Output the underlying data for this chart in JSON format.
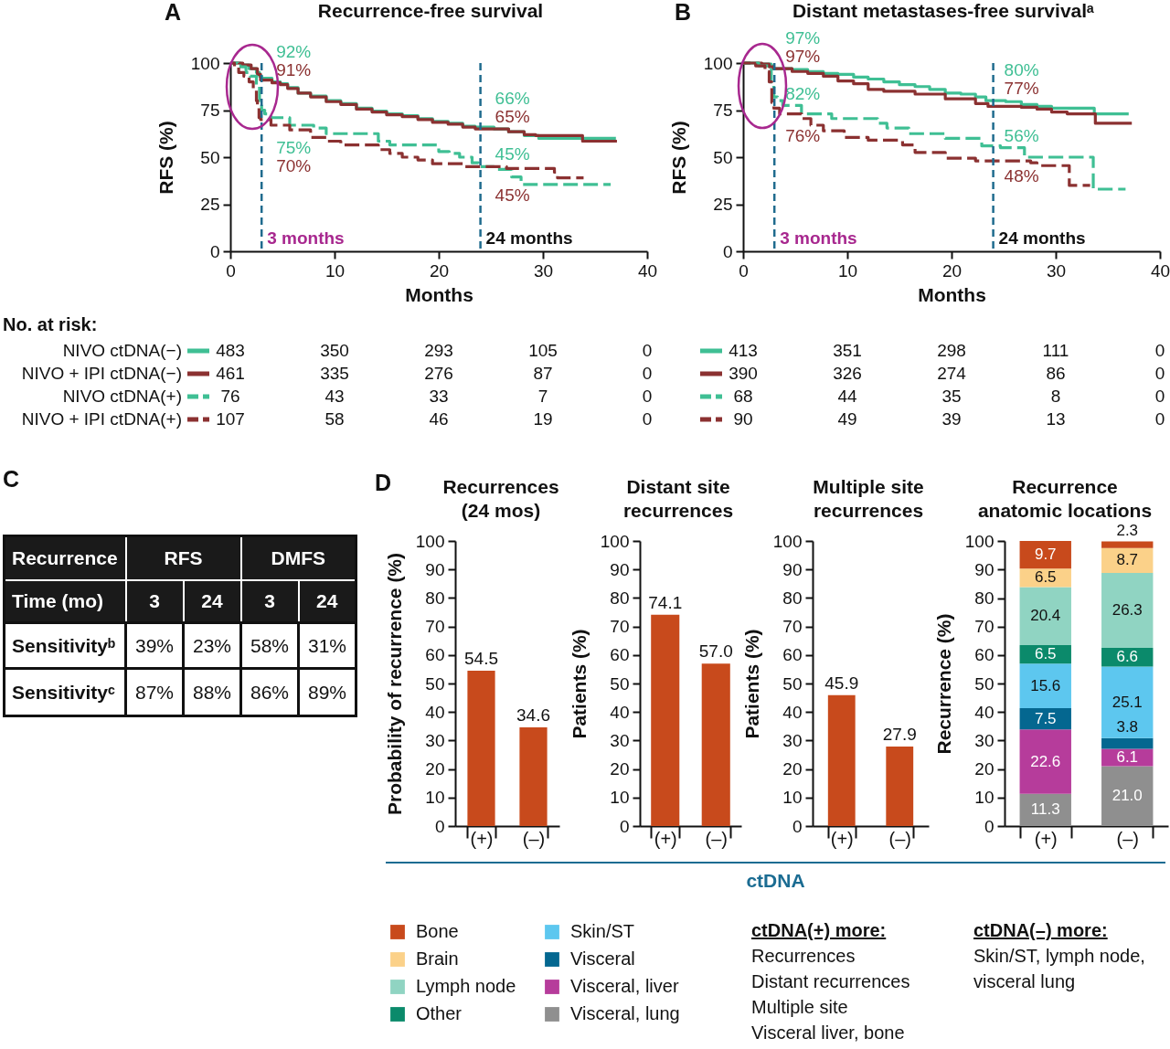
{
  "chart_data": [
    {
      "type": "step",
      "title": "Recurrence-free survival",
      "xlabel": "Months",
      "ylabel": "RFS (%)",
      "xlim": [
        0,
        40
      ],
      "ylim": [
        0,
        100
      ],
      "xticks": [
        0,
        10,
        20,
        30,
        40
      ],
      "yticks": [
        0,
        25,
        50,
        75,
        100
      ],
      "legend": "bottom",
      "series": [
        {
          "name": "NIVO ctDNA(−)",
          "color": "#3fbf94",
          "x": [
            0,
            1,
            1.8,
            2.5,
            2.8,
            3,
            4,
            4.8,
            5.5,
            6.5,
            7.7,
            9.2,
            10.6,
            12.1,
            13.6,
            15,
            16.5,
            18,
            19.4,
            20.9,
            22.3,
            23.5,
            25.3,
            26.7,
            28.2,
            29.6,
            37
          ],
          "values": [
            100,
            99,
            97,
            95,
            93,
            92,
            90,
            89,
            87,
            84,
            82.5,
            80,
            78.5,
            76,
            74.5,
            73,
            72,
            70.5,
            69,
            68,
            66.5,
            66,
            65,
            63.5,
            61.5,
            60,
            60
          ]
        },
        {
          "name": "NIVO + IPI ctDNA(−)",
          "color": "#8b3131",
          "x": [
            0,
            1.2,
            2,
            2.6,
            2.9,
            4,
            4.8,
            5.5,
            6.5,
            7.7,
            9.2,
            10.6,
            12.1,
            13.6,
            15,
            16.5,
            18,
            19.4,
            20.9,
            22.3,
            23.5,
            26.7,
            28.2,
            29.3,
            33.8,
            37.1
          ],
          "values": [
            100,
            99,
            97,
            94,
            91,
            89.5,
            88.5,
            86.5,
            84,
            82,
            79.5,
            78,
            75.5,
            74,
            72.5,
            71.5,
            70,
            68.5,
            67.5,
            66,
            65,
            63.5,
            62,
            61.5,
            58.5,
            58.5
          ]
        },
        {
          "name": "NIVO ctDNA(+)",
          "color": "#3fbf94",
          "line_style": "dashed",
          "x": [
            0,
            0.7,
            1.5,
            1.9,
            2.5,
            2.8,
            3,
            3.3,
            3.9,
            5.7,
            8,
            9.2,
            14.2,
            15.3,
            20,
            21,
            22,
            23.2,
            23.8,
            25.3,
            27,
            27.9,
            36.5
          ],
          "values": [
            100,
            98,
            95,
            93,
            88,
            80,
            75,
            73,
            71,
            67,
            65.5,
            62.5,
            58.5,
            56.5,
            53,
            52,
            50,
            47,
            45,
            43.5,
            39.5,
            35.5,
            35.5
          ]
        },
        {
          "name": "NIVO + IPI ctDNA(+)",
          "color": "#8b3131",
          "line_style": "dashed",
          "x": [
            0,
            0.4,
            0.8,
            1.3,
            1.8,
            2.2,
            2.5,
            2.6,
            2.75,
            2.9,
            3.9,
            5.7,
            7.7,
            9.2,
            10.6,
            14.2,
            15.3,
            16.5,
            18,
            19.4,
            22.5,
            26.5,
            31.1,
            31.4,
            33.9
          ],
          "values": [
            100,
            98,
            95,
            93,
            90,
            86.5,
            80,
            77,
            71,
            70,
            67,
            64.5,
            60.5,
            58.5,
            56.5,
            54,
            52,
            50,
            48.5,
            46.5,
            45,
            44,
            42,
            39,
            39
          ]
        }
      ],
      "ref_lines": [
        {
          "axis": "x",
          "value": 3,
          "label": "3 months",
          "color": "#1f6b8e",
          "line_style": "dashed"
        },
        {
          "axis": "x",
          "value": 24,
          "label": "24 months",
          "color": "#1f6b8e",
          "line_style": "dashed"
        }
      ],
      "annotations": [
        "A",
        "No. at risk:",
        "483",
        "350",
        "293",
        "105",
        "0",
        "461",
        "335",
        "276",
        "87",
        "0",
        "76",
        "43",
        "33",
        "7",
        "0",
        "107",
        "58",
        "46",
        "19",
        "0",
        "92%",
        "91%",
        "75%",
        "70%",
        "66%",
        "65%",
        "45%",
        "45%"
      ]
    },
    {
      "type": "step",
      "title": "Distant metastases-free survivalᵃ",
      "xlabel": "Months",
      "ylabel": "RFS (%)",
      "xlim": [
        0,
        40
      ],
      "ylim": [
        0,
        100
      ],
      "xticks": [
        0,
        10,
        20,
        30,
        40
      ],
      "yticks": [
        0,
        25,
        50,
        75,
        100
      ],
      "legend": "bottom",
      "series": [
        {
          "color": "#3fbf94",
          "x": [
            0,
            1.5,
            2.7,
            2.9,
            4.7,
            6.2,
            7.7,
            9.1,
            10.6,
            12,
            13.5,
            15,
            16.5,
            17.9,
            19.4,
            20.9,
            22.3,
            23.3,
            25.2,
            26.7,
            28.2,
            29.6,
            33.7,
            37
          ],
          "values": [
            100,
            99.5,
            98.5,
            97,
            96.5,
            95.5,
            94.5,
            94,
            92.5,
            91.5,
            90,
            88.5,
            87.5,
            86,
            84,
            83.5,
            82,
            80,
            79.5,
            78,
            77,
            76,
            73,
            73
          ]
        },
        {
          "color": "#8b3131",
          "x": [
            0,
            1.8,
            2.5,
            2.9,
            4.7,
            6.2,
            7.7,
            9.1,
            10.6,
            12,
            13.5,
            16.5,
            19.4,
            22.3,
            23.5,
            26.7,
            28.2,
            29.6,
            31.1,
            33.8,
            37.3
          ],
          "values": [
            100,
            99.5,
            98,
            97,
            95.5,
            94.5,
            93,
            90.5,
            89,
            86,
            85,
            83.5,
            81,
            78.5,
            77,
            76.5,
            75.5,
            74,
            73,
            68,
            68
          ]
        },
        {
          "color": "#3fbf94",
          "line_style": "dashed",
          "x": [
            0,
            1.5,
            2.4,
            2.7,
            2.95,
            3.3,
            3.8,
            5.6,
            8.5,
            12.9,
            13.8,
            15.9,
            19.4,
            22.9,
            24.7,
            27,
            33.6,
            36.7
          ],
          "values": [
            100,
            98.5,
            96.5,
            90,
            82,
            80,
            77.5,
            73,
            70.5,
            68,
            65.5,
            62.5,
            60,
            56,
            55,
            50,
            33,
            33
          ]
        },
        {
          "color": "#8b3131",
          "line_style": "dashed",
          "x": [
            0,
            1.2,
            2.1,
            2.5,
            2.75,
            2.95,
            3.5,
            5.6,
            6.5,
            7.7,
            9.7,
            12,
            15.3,
            16.5,
            19.4,
            22.3,
            27.6,
            28.2,
            31.3,
            33.3
          ],
          "values": [
            100,
            98.5,
            95.5,
            90,
            79,
            76,
            73,
            70.5,
            67,
            64,
            60.5,
            59,
            56.5,
            52.5,
            49.5,
            48,
            47,
            45.5,
            35,
            35
          ]
        }
      ],
      "ref_lines": [
        {
          "axis": "x",
          "value": 3,
          "label": "3 months",
          "color": "#1f6b8e",
          "line_style": "dashed"
        },
        {
          "axis": "x",
          "value": 24,
          "label": "24 months",
          "color": "#1f6b8e",
          "line_style": "dashed"
        }
      ],
      "annotations": [
        "B",
        "413",
        "351",
        "298",
        "111",
        "0",
        "390",
        "326",
        "274",
        "86",
        "0",
        "68",
        "44",
        "35",
        "8",
        "0",
        "90",
        "49",
        "39",
        "13",
        "0",
        "97%",
        "97%",
        "82%",
        "76%",
        "80%",
        "77%",
        "56%",
        "48%"
      ]
    },
    {
      "type": "other",
      "annotations": [
        "C",
        "Recurrence",
        "RFS",
        "DMFS",
        "Time (mo)",
        "3",
        "24",
        "3",
        "24",
        "Sensitivityᵇ",
        "39%",
        "23%",
        "58%",
        "31%",
        "Sensitivityᶜ",
        "87%",
        "88%",
        "86%",
        "89%"
      ]
    },
    {
      "type": "bar",
      "title": "Recurrences (24 mos)",
      "ylabel": "Probability of recurrence (%)",
      "categories": [
        "(+)",
        "(–)"
      ],
      "values": [
        54.5,
        34.6
      ],
      "color": "#c84a1c",
      "ylim": [
        0,
        100
      ],
      "yticks": [
        0,
        10,
        20,
        30,
        40,
        50,
        60,
        70,
        80,
        90,
        100
      ],
      "data_labels": true,
      "annotations": [
        "D"
      ]
    },
    {
      "type": "bar",
      "title": "Distant site recurrences",
      "ylabel": "Patients (%)",
      "categories": [
        "(+)",
        "(–)"
      ],
      "values": [
        74.1,
        57.0
      ],
      "value_labels": [
        "74.1",
        "57.0"
      ],
      "color": "#c84a1c",
      "ylim": [
        0,
        100
      ],
      "yticks": [
        0,
        10,
        20,
        30,
        40,
        50,
        60,
        70,
        80,
        90,
        100
      ]
    },
    {
      "type": "bar",
      "title": "Multiple site recurrences",
      "ylabel": "Patients (%)",
      "categories": [
        "(+)",
        "(–)"
      ],
      "values": [
        45.9,
        27.9
      ],
      "color": "#c84a1c",
      "ylim": [
        0,
        100
      ],
      "yticks": [
        0,
        10,
        20,
        30,
        40,
        50,
        60,
        70,
        80,
        90,
        100
      ],
      "data_labels": true,
      "annotations": [
        "ctDNA"
      ]
    },
    {
      "type": "bar",
      "stacked": true,
      "title": "Recurrence anatomic locations",
      "ylabel": "Recurrence (%)",
      "categories": [
        "(+)",
        "(–)"
      ],
      "ylim": [
        0,
        100.1
      ],
      "yticks": [
        0,
        10,
        20,
        30,
        40,
        50,
        60,
        70,
        80,
        90,
        100
      ],
      "legend": "bottom",
      "series": [
        {
          "name": "Visceral, lung",
          "color": "#8f8f8f",
          "values": [
            11.3,
            21.0
          ],
          "value_labels": [
            "11.3",
            "21.0"
          ]
        },
        {
          "name": "Visceral, liver",
          "color": "#b63c9b",
          "values": [
            22.6,
            6.1
          ],
          "value_labels": [
            "22.6",
            "6.1"
          ]
        },
        {
          "name": "Visceral",
          "color": "#046790",
          "values": [
            7.5,
            3.8
          ],
          "value_labels": [
            "7.5",
            "3.8"
          ]
        },
        {
          "name": "Skin/ST",
          "color": "#5dc7ef",
          "values": [
            15.6,
            25.1
          ],
          "value_labels": [
            "15.6",
            "25.1"
          ]
        },
        {
          "name": "Other",
          "color": "#0b8a6b",
          "values": [
            6.5,
            6.6
          ],
          "value_labels": [
            "6.5",
            "6.6"
          ]
        },
        {
          "name": "Lymph node",
          "color": "#90d4c2",
          "values": [
            20.4,
            26.3
          ],
          "value_labels": [
            "20.4",
            "26.3"
          ]
        },
        {
          "name": "Brain",
          "color": "#fbd189",
          "values": [
            6.5,
            8.7
          ],
          "value_labels": [
            "6.5",
            "8.7"
          ]
        },
        {
          "name": "Bone",
          "color": "#c84a1c",
          "values": [
            9.7,
            2.3
          ],
          "value_labels": [
            "9.7",
            "2.3"
          ]
        }
      ],
      "annotations": [
        "ctDNA(+) more:",
        "Recurrences",
        "Distant recurrences",
        "Multiple site",
        "Visceral liver, bone",
        "ctDNA(–) more:",
        "Skin/ST, lymph node, visceral lung"
      ]
    }
  ]
}
